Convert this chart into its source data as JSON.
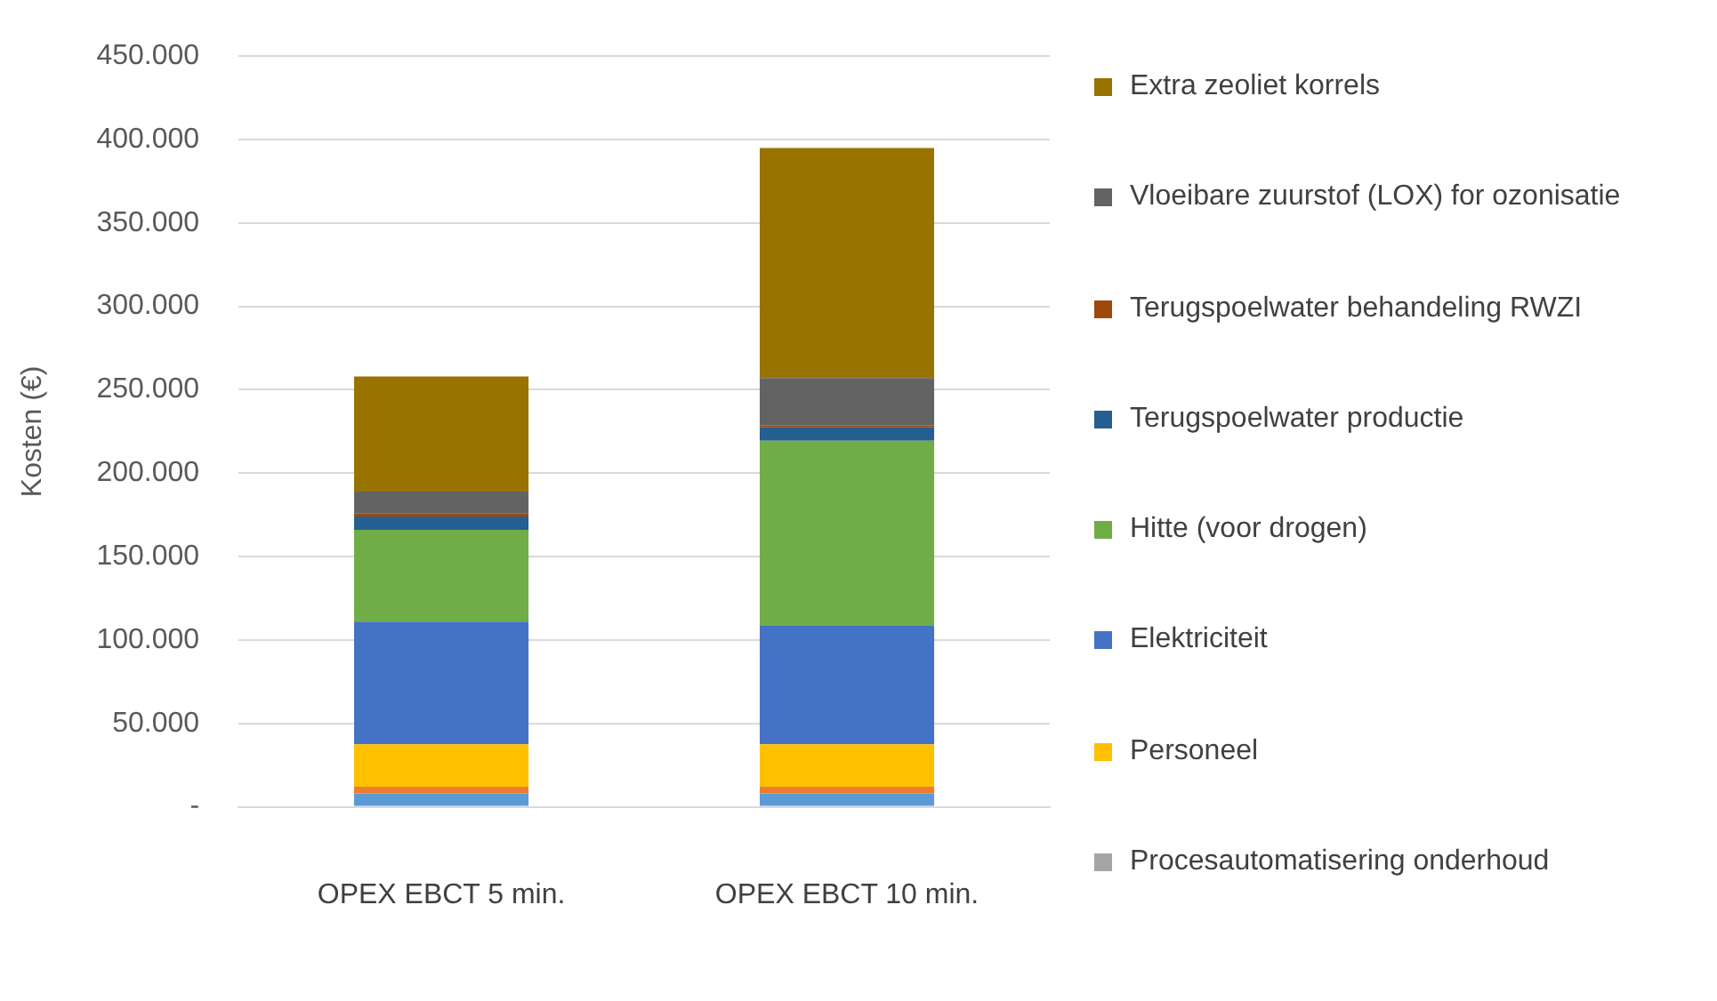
{
  "chart_data": {
    "type": "bar",
    "stacked": true,
    "ylabel": "Kosten (€)",
    "categories": [
      "OPEX EBCT 5 min.",
      "OPEX EBCT 10 min."
    ],
    "ylim": [
      0,
      450000
    ],
    "yticks": [
      {
        "value": 0,
        "label": "-"
      },
      {
        "value": 50000,
        "label": "50.000"
      },
      {
        "value": 100000,
        "label": "100.000"
      },
      {
        "value": 150000,
        "label": "150.000"
      },
      {
        "value": 200000,
        "label": "200.000"
      },
      {
        "value": 250000,
        "label": "250.000"
      },
      {
        "value": 300000,
        "label": "300.000"
      },
      {
        "value": 350000,
        "label": "350.000"
      },
      {
        "value": 400000,
        "label": "400.000"
      },
      {
        "value": 450000,
        "label": "450.000"
      }
    ],
    "grid": "y",
    "legend": "right",
    "series": [
      {
        "color": "#5b9bd5",
        "values": [
          8000,
          8000
        ]
      },
      {
        "color": "#ed7d31",
        "values": [
          4000,
          4000
        ]
      },
      {
        "name": "Procesautomatisering onderhoud",
        "color": "#a5a5a5",
        "values": [
          0,
          0
        ]
      },
      {
        "name": "Personeel",
        "color": "#ffc000",
        "values": [
          25500,
          25500
        ]
      },
      {
        "name": "Elektriciteit",
        "color": "#4472c4",
        "values": [
          73500,
          71000
        ]
      },
      {
        "name": "Hitte (voor drogen)",
        "color": "#70ad47",
        "values": [
          55000,
          111000
        ]
      },
      {
        "name": "Terugspoelwater productie",
        "color": "#255e91",
        "values": [
          8000,
          8000
        ]
      },
      {
        "name": "Terugspoelwater behandeling RWZI",
        "color": "#9e480e",
        "values": [
          2000,
          1000
        ]
      },
      {
        "name": "Vloeibare zuurstof (LOX) for ozonisatie",
        "color": "#636363",
        "values": [
          13000,
          28500
        ]
      },
      {
        "name": "Extra zeoliet korrels",
        "color": "#997300",
        "values": [
          69000,
          138000
        ]
      }
    ]
  }
}
